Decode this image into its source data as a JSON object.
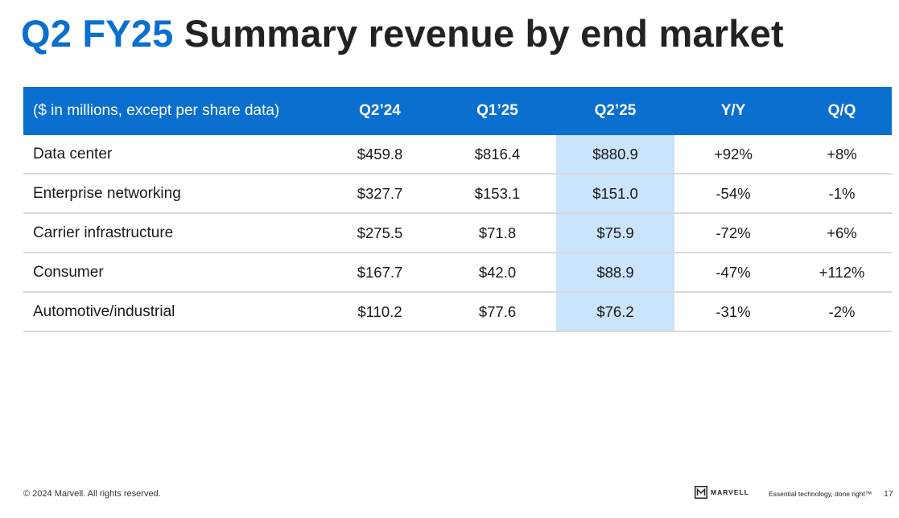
{
  "title": {
    "accent": "Q2 FY25",
    "rest": "Summary revenue by end market"
  },
  "table": {
    "header": {
      "label": "($ in millions, except per share data)",
      "columns": [
        "Q2’24",
        "Q1’25",
        "Q2’25",
        "Y/Y",
        "Q/Q"
      ]
    },
    "rows": [
      {
        "label": "Data center",
        "values": [
          "$459.8",
          "$816.4",
          "$880.9",
          "+92%",
          "+8%"
        ]
      },
      {
        "label": "Enterprise networking",
        "values": [
          "$327.7",
          "$153.1",
          "$151.0",
          "-54%",
          "-1%"
        ]
      },
      {
        "label": "Carrier infrastructure",
        "values": [
          "$275.5",
          "$71.8",
          "$75.9",
          "-72%",
          "+6%"
        ]
      },
      {
        "label": "Consumer",
        "values": [
          "$167.7",
          "$42.0",
          "$88.9",
          "-47%",
          "+112%"
        ]
      },
      {
        "label": "Automotive/industrial",
        "values": [
          "$110.2",
          "$77.6",
          "$76.2",
          "-31%",
          "-2%"
        ]
      }
    ],
    "highlight_column_index": 2
  },
  "footer": {
    "copyright": "© 2024 Marvell. All rights reserved.",
    "logo_text": "MARVELL",
    "tagline": "Essential technology, done right™",
    "page_number": "17"
  },
  "colors": {
    "accent": "#0a6fcf",
    "header_bg": "#0a6fcf",
    "highlight": "#c9e4fb",
    "row_divider": "#d9d9d9"
  },
  "icons": {
    "logo": "marvell-logo-icon"
  }
}
